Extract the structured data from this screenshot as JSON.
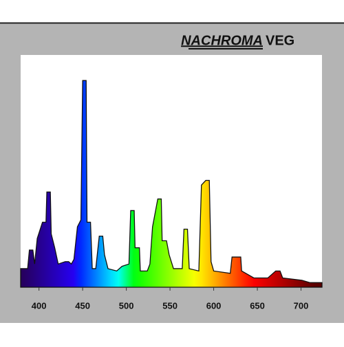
{
  "chart_data": {
    "type": "area",
    "title": [
      "NACHROMA",
      "VEG"
    ],
    "x": [
      379,
      387,
      389,
      393,
      395,
      398,
      404,
      408,
      409,
      413,
      414,
      418,
      422,
      430,
      434,
      437,
      440,
      444,
      448,
      450,
      454,
      455,
      459,
      461,
      465,
      469,
      473,
      475,
      479,
      489,
      495,
      503,
      505,
      509,
      510,
      515,
      516,
      524,
      527,
      530,
      536,
      540,
      541,
      546,
      549,
      554,
      564,
      566,
      570,
      572,
      583,
      586,
      591,
      595,
      597,
      600,
      619,
      621,
      631,
      632,
      646,
      662,
      671,
      676,
      679,
      701,
      710,
      724
    ],
    "values": [
      8,
      8,
      16,
      16,
      10,
      21,
      28,
      28,
      41,
      41,
      23,
      17,
      10,
      11,
      11,
      10,
      12,
      26,
      29,
      89,
      89,
      28,
      28,
      8,
      8,
      22,
      22,
      14,
      8,
      7,
      9,
      10,
      33,
      33,
      17,
      17,
      7,
      7,
      10,
      26,
      38,
      38,
      20,
      20,
      14,
      8,
      8,
      25,
      25,
      8,
      7,
      44,
      46,
      46,
      11,
      7,
      6,
      13,
      13,
      7,
      4,
      4,
      7,
      7,
      4,
      3,
      2,
      2
    ],
    "xlim": [
      379,
      724
    ],
    "ylim": [
      0,
      100
    ],
    "xticks": [
      400,
      450,
      500,
      550,
      600,
      650,
      700
    ]
  }
}
